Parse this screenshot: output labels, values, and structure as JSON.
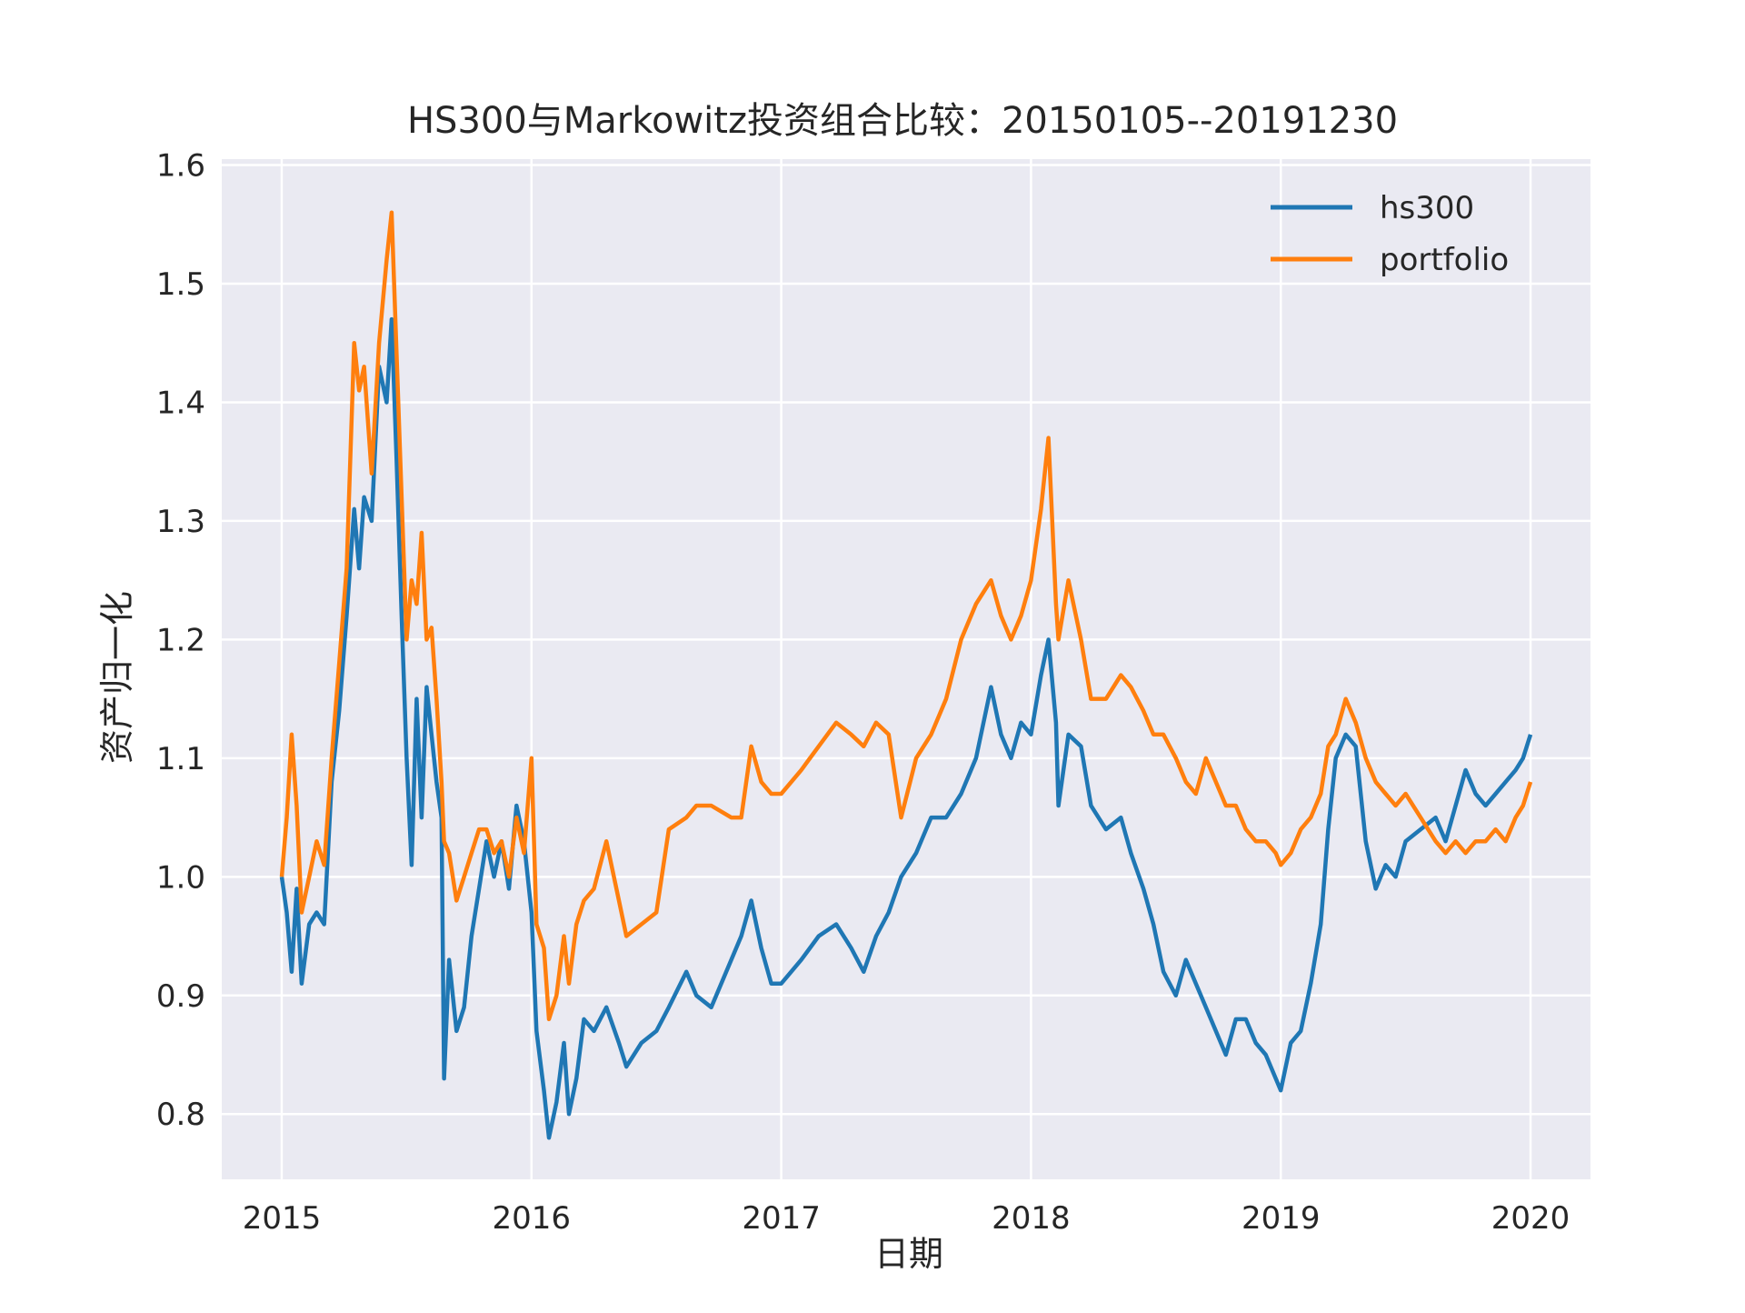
{
  "chart_data": {
    "type": "line",
    "title": "HS300与Markowitz投资组合比较：20150105--20191230",
    "xlabel": "日期",
    "ylabel": "资产归一化",
    "xlim": [
      2014.76,
      2020.24
    ],
    "ylim": [
      0.745,
      1.605
    ],
    "x_ticks": [
      2015,
      2016,
      2017,
      2018,
      2019,
      2020
    ],
    "x_tick_labels": [
      "2015",
      "2016",
      "2017",
      "2018",
      "2019",
      "2020"
    ],
    "y_ticks": [
      0.8,
      0.9,
      1.0,
      1.1,
      1.2,
      1.3,
      1.4,
      1.5,
      1.6
    ],
    "y_tick_labels": [
      "0.8",
      "0.9",
      "1.0",
      "1.1",
      "1.2",
      "1.3",
      "1.4",
      "1.5",
      "1.6"
    ],
    "grid": true,
    "legend_position": "top-right",
    "background_color": "#eaeaf2",
    "grid_color": "#ffffff",
    "series": [
      {
        "name": "hs300",
        "color": "#1f77b4",
        "points": [
          [
            2015.0,
            1.0
          ],
          [
            2015.02,
            0.97
          ],
          [
            2015.04,
            0.92
          ],
          [
            2015.06,
            0.99
          ],
          [
            2015.08,
            0.91
          ],
          [
            2015.11,
            0.96
          ],
          [
            2015.14,
            0.97
          ],
          [
            2015.17,
            0.96
          ],
          [
            2015.2,
            1.08
          ],
          [
            2015.23,
            1.14
          ],
          [
            2015.26,
            1.22
          ],
          [
            2015.29,
            1.31
          ],
          [
            2015.31,
            1.26
          ],
          [
            2015.33,
            1.32
          ],
          [
            2015.36,
            1.3
          ],
          [
            2015.39,
            1.43
          ],
          [
            2015.42,
            1.4
          ],
          [
            2015.44,
            1.47
          ],
          [
            2015.46,
            1.35
          ],
          [
            2015.48,
            1.22
          ],
          [
            2015.5,
            1.1
          ],
          [
            2015.52,
            1.01
          ],
          [
            2015.54,
            1.15
          ],
          [
            2015.56,
            1.05
          ],
          [
            2015.58,
            1.16
          ],
          [
            2015.6,
            1.12
          ],
          [
            2015.62,
            1.08
          ],
          [
            2015.64,
            1.05
          ],
          [
            2015.65,
            0.83
          ],
          [
            2015.67,
            0.93
          ],
          [
            2015.7,
            0.87
          ],
          [
            2015.73,
            0.89
          ],
          [
            2015.76,
            0.95
          ],
          [
            2015.79,
            0.99
          ],
          [
            2015.82,
            1.03
          ],
          [
            2015.85,
            1.0
          ],
          [
            2015.88,
            1.03
          ],
          [
            2015.91,
            0.99
          ],
          [
            2015.94,
            1.06
          ],
          [
            2015.97,
            1.03
          ],
          [
            2016.0,
            0.97
          ],
          [
            2016.02,
            0.87
          ],
          [
            2016.05,
            0.82
          ],
          [
            2016.07,
            0.78
          ],
          [
            2016.1,
            0.81
          ],
          [
            2016.13,
            0.86
          ],
          [
            2016.15,
            0.8
          ],
          [
            2016.18,
            0.83
          ],
          [
            2016.21,
            0.88
          ],
          [
            2016.25,
            0.87
          ],
          [
            2016.3,
            0.89
          ],
          [
            2016.35,
            0.86
          ],
          [
            2016.38,
            0.84
          ],
          [
            2016.44,
            0.86
          ],
          [
            2016.5,
            0.87
          ],
          [
            2016.55,
            0.89
          ],
          [
            2016.62,
            0.92
          ],
          [
            2016.66,
            0.9
          ],
          [
            2016.72,
            0.89
          ],
          [
            2016.8,
            0.93
          ],
          [
            2016.84,
            0.95
          ],
          [
            2016.88,
            0.98
          ],
          [
            2016.92,
            0.94
          ],
          [
            2016.96,
            0.91
          ],
          [
            2017.0,
            0.91
          ],
          [
            2017.08,
            0.93
          ],
          [
            2017.15,
            0.95
          ],
          [
            2017.22,
            0.96
          ],
          [
            2017.28,
            0.94
          ],
          [
            2017.33,
            0.92
          ],
          [
            2017.38,
            0.95
          ],
          [
            2017.43,
            0.97
          ],
          [
            2017.48,
            1.0
          ],
          [
            2017.54,
            1.02
          ],
          [
            2017.6,
            1.05
          ],
          [
            2017.66,
            1.05
          ],
          [
            2017.72,
            1.07
          ],
          [
            2017.78,
            1.1
          ],
          [
            2017.84,
            1.16
          ],
          [
            2017.88,
            1.12
          ],
          [
            2017.92,
            1.1
          ],
          [
            2017.96,
            1.13
          ],
          [
            2018.0,
            1.12
          ],
          [
            2018.04,
            1.17
          ],
          [
            2018.07,
            1.2
          ],
          [
            2018.1,
            1.13
          ],
          [
            2018.11,
            1.06
          ],
          [
            2018.15,
            1.12
          ],
          [
            2018.2,
            1.11
          ],
          [
            2018.24,
            1.06
          ],
          [
            2018.3,
            1.04
          ],
          [
            2018.36,
            1.05
          ],
          [
            2018.4,
            1.02
          ],
          [
            2018.45,
            0.99
          ],
          [
            2018.49,
            0.96
          ],
          [
            2018.53,
            0.92
          ],
          [
            2018.58,
            0.9
          ],
          [
            2018.62,
            0.93
          ],
          [
            2018.66,
            0.91
          ],
          [
            2018.7,
            0.89
          ],
          [
            2018.74,
            0.87
          ],
          [
            2018.78,
            0.85
          ],
          [
            2018.82,
            0.88
          ],
          [
            2018.86,
            0.88
          ],
          [
            2018.9,
            0.86
          ],
          [
            2018.94,
            0.85
          ],
          [
            2018.98,
            0.83
          ],
          [
            2019.0,
            0.82
          ],
          [
            2019.04,
            0.86
          ],
          [
            2019.08,
            0.87
          ],
          [
            2019.12,
            0.91
          ],
          [
            2019.16,
            0.96
          ],
          [
            2019.19,
            1.04
          ],
          [
            2019.22,
            1.1
          ],
          [
            2019.26,
            1.12
          ],
          [
            2019.3,
            1.11
          ],
          [
            2019.34,
            1.03
          ],
          [
            2019.38,
            0.99
          ],
          [
            2019.42,
            1.01
          ],
          [
            2019.46,
            1.0
          ],
          [
            2019.5,
            1.03
          ],
          [
            2019.56,
            1.04
          ],
          [
            2019.62,
            1.05
          ],
          [
            2019.66,
            1.03
          ],
          [
            2019.7,
            1.06
          ],
          [
            2019.74,
            1.09
          ],
          [
            2019.78,
            1.07
          ],
          [
            2019.82,
            1.06
          ],
          [
            2019.86,
            1.07
          ],
          [
            2019.9,
            1.08
          ],
          [
            2019.94,
            1.09
          ],
          [
            2019.97,
            1.1
          ],
          [
            2020.0,
            1.12
          ]
        ]
      },
      {
        "name": "portfolio",
        "color": "#ff7f0e",
        "points": [
          [
            2015.0,
            1.0
          ],
          [
            2015.02,
            1.05
          ],
          [
            2015.04,
            1.12
          ],
          [
            2015.06,
            1.06
          ],
          [
            2015.08,
            0.97
          ],
          [
            2015.11,
            1.0
          ],
          [
            2015.14,
            1.03
          ],
          [
            2015.17,
            1.01
          ],
          [
            2015.2,
            1.1
          ],
          [
            2015.23,
            1.18
          ],
          [
            2015.26,
            1.26
          ],
          [
            2015.29,
            1.45
          ],
          [
            2015.31,
            1.41
          ],
          [
            2015.33,
            1.43
          ],
          [
            2015.36,
            1.34
          ],
          [
            2015.39,
            1.45
          ],
          [
            2015.42,
            1.52
          ],
          [
            2015.44,
            1.56
          ],
          [
            2015.46,
            1.44
          ],
          [
            2015.48,
            1.32
          ],
          [
            2015.5,
            1.2
          ],
          [
            2015.52,
            1.25
          ],
          [
            2015.54,
            1.23
          ],
          [
            2015.56,
            1.29
          ],
          [
            2015.58,
            1.2
          ],
          [
            2015.6,
            1.21
          ],
          [
            2015.62,
            1.15
          ],
          [
            2015.64,
            1.08
          ],
          [
            2015.65,
            1.03
          ],
          [
            2015.67,
            1.02
          ],
          [
            2015.7,
            0.98
          ],
          [
            2015.73,
            1.0
          ],
          [
            2015.76,
            1.02
          ],
          [
            2015.79,
            1.04
          ],
          [
            2015.82,
            1.04
          ],
          [
            2015.85,
            1.02
          ],
          [
            2015.88,
            1.03
          ],
          [
            2015.91,
            1.0
          ],
          [
            2015.94,
            1.05
          ],
          [
            2015.97,
            1.02
          ],
          [
            2016.0,
            1.1
          ],
          [
            2016.02,
            0.96
          ],
          [
            2016.05,
            0.94
          ],
          [
            2016.07,
            0.88
          ],
          [
            2016.1,
            0.9
          ],
          [
            2016.13,
            0.95
          ],
          [
            2016.15,
            0.91
          ],
          [
            2016.18,
            0.96
          ],
          [
            2016.21,
            0.98
          ],
          [
            2016.25,
            0.99
          ],
          [
            2016.3,
            1.03
          ],
          [
            2016.35,
            0.98
          ],
          [
            2016.38,
            0.95
          ],
          [
            2016.44,
            0.96
          ],
          [
            2016.5,
            0.97
          ],
          [
            2016.55,
            1.04
          ],
          [
            2016.62,
            1.05
          ],
          [
            2016.66,
            1.06
          ],
          [
            2016.72,
            1.06
          ],
          [
            2016.8,
            1.05
          ],
          [
            2016.84,
            1.05
          ],
          [
            2016.88,
            1.11
          ],
          [
            2016.92,
            1.08
          ],
          [
            2016.96,
            1.07
          ],
          [
            2017.0,
            1.07
          ],
          [
            2017.08,
            1.09
          ],
          [
            2017.15,
            1.11
          ],
          [
            2017.22,
            1.13
          ],
          [
            2017.28,
            1.12
          ],
          [
            2017.33,
            1.11
          ],
          [
            2017.38,
            1.13
          ],
          [
            2017.43,
            1.12
          ],
          [
            2017.48,
            1.05
          ],
          [
            2017.54,
            1.1
          ],
          [
            2017.6,
            1.12
          ],
          [
            2017.66,
            1.15
          ],
          [
            2017.72,
            1.2
          ],
          [
            2017.78,
            1.23
          ],
          [
            2017.84,
            1.25
          ],
          [
            2017.88,
            1.22
          ],
          [
            2017.92,
            1.2
          ],
          [
            2017.96,
            1.22
          ],
          [
            2018.0,
            1.25
          ],
          [
            2018.04,
            1.31
          ],
          [
            2018.07,
            1.37
          ],
          [
            2018.1,
            1.23
          ],
          [
            2018.11,
            1.2
          ],
          [
            2018.15,
            1.25
          ],
          [
            2018.2,
            1.2
          ],
          [
            2018.24,
            1.15
          ],
          [
            2018.3,
            1.15
          ],
          [
            2018.36,
            1.17
          ],
          [
            2018.4,
            1.16
          ],
          [
            2018.45,
            1.14
          ],
          [
            2018.49,
            1.12
          ],
          [
            2018.53,
            1.12
          ],
          [
            2018.58,
            1.1
          ],
          [
            2018.62,
            1.08
          ],
          [
            2018.66,
            1.07
          ],
          [
            2018.7,
            1.1
          ],
          [
            2018.74,
            1.08
          ],
          [
            2018.78,
            1.06
          ],
          [
            2018.82,
            1.06
          ],
          [
            2018.86,
            1.04
          ],
          [
            2018.9,
            1.03
          ],
          [
            2018.94,
            1.03
          ],
          [
            2018.98,
            1.02
          ],
          [
            2019.0,
            1.01
          ],
          [
            2019.04,
            1.02
          ],
          [
            2019.08,
            1.04
          ],
          [
            2019.12,
            1.05
          ],
          [
            2019.16,
            1.07
          ],
          [
            2019.19,
            1.11
          ],
          [
            2019.22,
            1.12
          ],
          [
            2019.26,
            1.15
          ],
          [
            2019.3,
            1.13
          ],
          [
            2019.34,
            1.1
          ],
          [
            2019.38,
            1.08
          ],
          [
            2019.42,
            1.07
          ],
          [
            2019.46,
            1.06
          ],
          [
            2019.5,
            1.07
          ],
          [
            2019.56,
            1.05
          ],
          [
            2019.62,
            1.03
          ],
          [
            2019.66,
            1.02
          ],
          [
            2019.7,
            1.03
          ],
          [
            2019.74,
            1.02
          ],
          [
            2019.78,
            1.03
          ],
          [
            2019.82,
            1.03
          ],
          [
            2019.86,
            1.04
          ],
          [
            2019.9,
            1.03
          ],
          [
            2019.94,
            1.05
          ],
          [
            2019.97,
            1.06
          ],
          [
            2020.0,
            1.08
          ]
        ]
      }
    ]
  }
}
